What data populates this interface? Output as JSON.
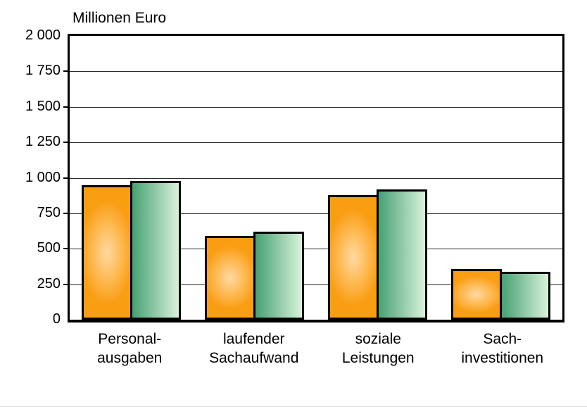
{
  "page": {
    "background": "#ffffff"
  },
  "chart_data": {
    "type": "bar",
    "title": "Millionen Euro",
    "categories": [
      {
        "name": "Personalausgaben",
        "lines": [
          "Personal-",
          "ausgaben"
        ]
      },
      {
        "name": "laufender Sachaufwand",
        "lines": [
          "laufender",
          "Sachaufwand"
        ]
      },
      {
        "name": "soziale Leistungen",
        "lines": [
          "soziale",
          "Leistungen"
        ]
      },
      {
        "name": "Sachinvestitionen",
        "lines": [
          "Sach-",
          "investitionen"
        ]
      }
    ],
    "series": [
      {
        "name": "orange",
        "values": [
          950,
          590,
          880,
          355
        ]
      },
      {
        "name": "green",
        "values": [
          980,
          620,
          920,
          340
        ]
      }
    ],
    "ylabel": "Millionen Euro",
    "xlabel": "",
    "ylim": [
      0,
      2000
    ],
    "ytick_step": 250,
    "ytick_labels": [
      "0",
      "250",
      "500",
      "750",
      "1 000",
      "1 250",
      "1 500",
      "1 750",
      "2 000"
    ],
    "grid": "horizontal",
    "legend_position": "none",
    "colors": {
      "orange_edge": "#f99d13",
      "orange_mid": "#feb951",
      "orange_light": "#ffd9a3",
      "green_dark": "#46a173",
      "green_light": "#d9f2da",
      "outline": "#000000",
      "gridline": "#2b2b2b"
    }
  }
}
